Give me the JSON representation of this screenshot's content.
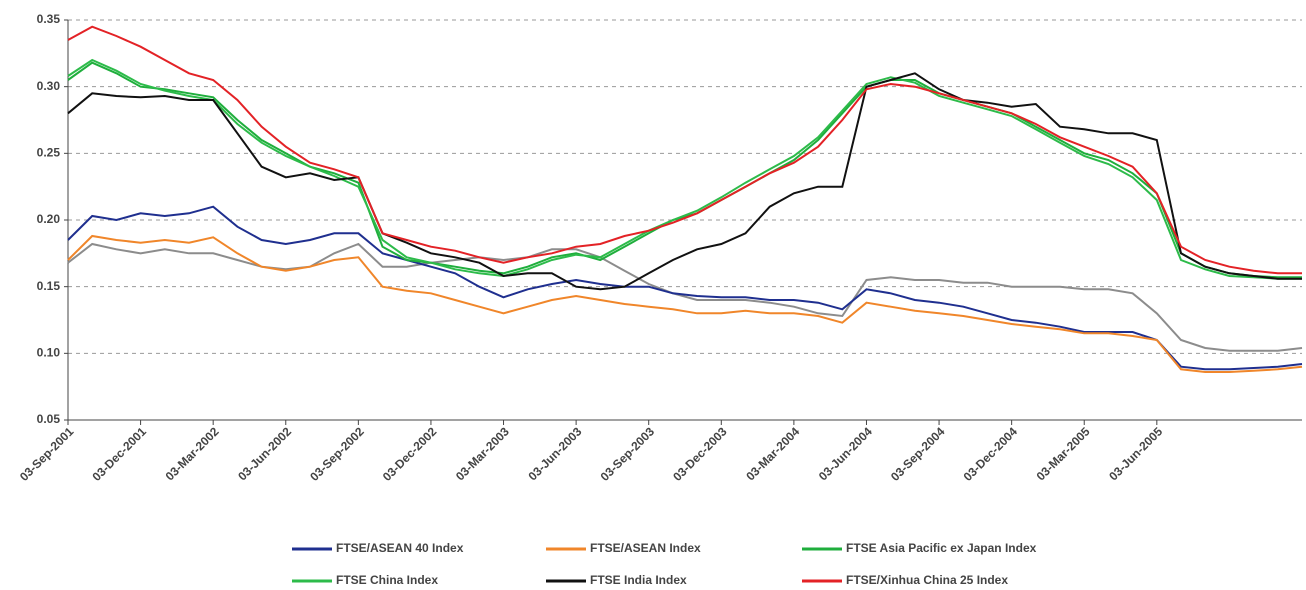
{
  "chart_data": {
    "type": "line",
    "x": [
      "03-Sep-2001",
      "03-Oct-2001",
      "03-Nov-2001",
      "03-Dec-2001",
      "03-Jan-2002",
      "03-Feb-2002",
      "03-Mar-2002",
      "03-Apr-2002",
      "03-May-2002",
      "03-Jun-2002",
      "03-Jul-2002",
      "03-Aug-2002",
      "03-Sep-2002",
      "03-Oct-2002",
      "03-Nov-2002",
      "03-Dec-2002",
      "03-Jan-2003",
      "03-Feb-2003",
      "03-Mar-2003",
      "03-Apr-2003",
      "03-May-2003",
      "03-Jun-2003",
      "03-Jul-2003",
      "03-Aug-2003",
      "03-Sep-2003",
      "03-Oct-2003",
      "03-Nov-2003",
      "03-Dec-2003",
      "03-Jan-2004",
      "03-Feb-2004",
      "03-Mar-2004",
      "03-Apr-2004",
      "03-May-2004",
      "03-Jun-2004",
      "03-Jul-2004",
      "03-Aug-2004",
      "03-Sep-2004",
      "03-Oct-2004",
      "03-Nov-2004",
      "03-Dec-2004",
      "03-Jan-2005",
      "03-Feb-2005",
      "03-Mar-2005",
      "03-Apr-2005",
      "03-May-2005",
      "03-Jun-2005",
      "03-Jul-2005",
      "03-Aug-2005",
      "03-Sep-2005",
      "03-Oct-2005",
      "03-Nov-2005",
      "03-Dec-2005"
    ],
    "xlim": [
      "03-Sep-2001",
      "03-Dec-2005"
    ],
    "xticks": [
      "03-Sep-2001",
      "03-Dec-2001",
      "03-Mar-2002",
      "03-Jun-2002",
      "03-Sep-2002",
      "03-Dec-2002",
      "03-Mar-2003",
      "03-Jun-2003",
      "03-Sep-2003",
      "03-Dec-2003",
      "03-Mar-2004",
      "03-Jun-2004",
      "03-Sep-2004",
      "03-Dec-2004",
      "03-Mar-2005",
      "03-Jun-2005"
    ],
    "ylim": [
      0.05,
      0.35
    ],
    "yticks": [
      0.05,
      {
        "value": 0.1,
        "label": "0.10"
      },
      0.15,
      {
        "value": 0.2,
        "label": "0.20"
      },
      0.25,
      {
        "value": 0.3,
        "label": "0.30"
      },
      0.35
    ],
    "grid": true,
    "legend": "bottom",
    "series": [
      {
        "name": null,
        "color": "#8c8c8c",
        "values": [
          0.168,
          0.182,
          0.178,
          0.175,
          0.178,
          0.175,
          0.175,
          0.17,
          0.165,
          0.163,
          0.165,
          0.175,
          0.182,
          0.165,
          0.165,
          0.168,
          0.17,
          0.172,
          0.17,
          0.172,
          0.178,
          0.178,
          0.172,
          0.162,
          0.152,
          0.145,
          0.14,
          0.14,
          0.14,
          0.138,
          0.135,
          0.13,
          0.128,
          0.155,
          0.157,
          0.155,
          0.155,
          0.153,
          0.153,
          0.15,
          0.15,
          0.15,
          0.148,
          0.148,
          0.145,
          0.13,
          0.11,
          0.104,
          0.102,
          0.102,
          0.102,
          0.104
        ]
      },
      {
        "name": "FTSE/ASEAN 40 Index",
        "color": "#1f2f8f",
        "values": [
          0.185,
          0.203,
          0.2,
          0.205,
          0.203,
          0.205,
          0.21,
          0.195,
          0.185,
          0.182,
          0.185,
          0.19,
          0.19,
          0.175,
          0.17,
          0.165,
          0.16,
          0.15,
          0.142,
          0.148,
          0.152,
          0.155,
          0.152,
          0.15,
          0.15,
          0.145,
          0.143,
          0.142,
          0.142,
          0.14,
          0.14,
          0.138,
          0.133,
          0.148,
          0.145,
          0.14,
          0.138,
          0.135,
          0.13,
          0.125,
          0.123,
          0.12,
          0.116,
          0.116,
          0.116,
          0.11,
          0.09,
          0.088,
          0.088,
          0.089,
          0.09,
          0.092
        ]
      },
      {
        "name": "FTSE/ASEAN Index",
        "color": "#f0862a",
        "values": [
          0.17,
          0.188,
          0.185,
          0.183,
          0.185,
          0.183,
          0.187,
          0.175,
          0.165,
          0.162,
          0.165,
          0.17,
          0.172,
          0.15,
          0.147,
          0.145,
          0.14,
          0.135,
          0.13,
          0.135,
          0.14,
          0.143,
          0.14,
          0.137,
          0.135,
          0.133,
          0.13,
          0.13,
          0.132,
          0.13,
          0.13,
          0.128,
          0.123,
          0.138,
          0.135,
          0.132,
          0.13,
          0.128,
          0.125,
          0.122,
          0.12,
          0.118,
          0.115,
          0.115,
          0.113,
          0.11,
          0.088,
          0.086,
          0.086,
          0.087,
          0.088,
          0.09
        ]
      },
      {
        "name": "FTSE Asia Pacific ex Japan Index",
        "color": "#1fae3c",
        "values": [
          0.305,
          0.318,
          0.31,
          0.3,
          0.298,
          0.295,
          0.292,
          0.275,
          0.26,
          0.25,
          0.24,
          0.235,
          0.228,
          0.18,
          0.17,
          0.168,
          0.165,
          0.162,
          0.16,
          0.165,
          0.172,
          0.175,
          0.17,
          0.18,
          0.19,
          0.2,
          0.205,
          0.215,
          0.225,
          0.235,
          0.245,
          0.26,
          0.28,
          0.3,
          0.305,
          0.305,
          0.295,
          0.29,
          0.285,
          0.28,
          0.27,
          0.26,
          0.25,
          0.245,
          0.235,
          0.22,
          0.175,
          0.165,
          0.16,
          0.158,
          0.157,
          0.157
        ]
      },
      {
        "name": "FTSE China Index",
        "color": "#2dbb4a",
        "values": [
          0.308,
          0.32,
          0.312,
          0.302,
          0.297,
          0.293,
          0.29,
          0.272,
          0.258,
          0.248,
          0.24,
          0.233,
          0.225,
          0.185,
          0.172,
          0.168,
          0.163,
          0.16,
          0.158,
          0.163,
          0.17,
          0.174,
          0.172,
          0.182,
          0.192,
          0.2,
          0.207,
          0.217,
          0.228,
          0.238,
          0.248,
          0.262,
          0.282,
          0.302,
          0.307,
          0.303,
          0.293,
          0.288,
          0.283,
          0.278,
          0.268,
          0.258,
          0.248,
          0.242,
          0.232,
          0.215,
          0.17,
          0.163,
          0.158,
          0.157,
          0.156,
          0.156
        ]
      },
      {
        "name": "FTSE India Index",
        "color": "#111111",
        "values": [
          0.28,
          0.295,
          0.293,
          0.292,
          0.293,
          0.29,
          0.29,
          0.265,
          0.24,
          0.232,
          0.235,
          0.23,
          0.232,
          0.19,
          0.183,
          0.175,
          0.172,
          0.168,
          0.158,
          0.16,
          0.16,
          0.15,
          0.148,
          0.15,
          0.16,
          0.17,
          0.178,
          0.182,
          0.19,
          0.21,
          0.22,
          0.225,
          0.225,
          0.3,
          0.305,
          0.31,
          0.298,
          0.29,
          0.288,
          0.285,
          0.287,
          0.27,
          0.268,
          0.265,
          0.265,
          0.26,
          0.175,
          0.165,
          0.16,
          0.158,
          0.156,
          0.156
        ]
      },
      {
        "name": "FTSE/Xinhua China 25 Index",
        "color": "#e32226",
        "values": [
          0.335,
          0.345,
          0.338,
          0.33,
          0.32,
          0.31,
          0.305,
          0.29,
          0.27,
          0.255,
          0.243,
          0.238,
          0.232,
          0.19,
          0.185,
          0.18,
          0.177,
          0.172,
          0.168,
          0.172,
          0.175,
          0.18,
          0.182,
          0.188,
          0.192,
          0.198,
          0.205,
          0.215,
          0.225,
          0.235,
          0.243,
          0.255,
          0.275,
          0.298,
          0.302,
          0.3,
          0.295,
          0.29,
          0.285,
          0.28,
          0.272,
          0.262,
          0.255,
          0.248,
          0.24,
          0.22,
          0.18,
          0.17,
          0.165,
          0.162,
          0.16,
          0.16
        ]
      }
    ]
  }
}
